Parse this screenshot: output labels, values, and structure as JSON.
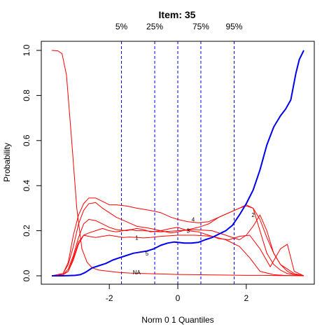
{
  "chart_data": {
    "type": "line",
    "title": "Item:  35",
    "xlabel": "Norm 0 1 Quantiles",
    "ylabel": "Probability",
    "xlim": [
      -3.8,
      3.8
    ],
    "ylim": [
      0,
      1
    ],
    "x_ticks": [
      -2,
      0,
      2
    ],
    "y_ticks": [
      0.0,
      0.2,
      0.4,
      0.6,
      0.8,
      1.0
    ],
    "y_tick_labels": [
      "0.0",
      "0.2",
      "0.4",
      "0.6",
      "0.8",
      "1.0"
    ],
    "grid": false,
    "quantile_lines": [
      {
        "label": "5%",
        "x": -1.645
      },
      {
        "label": "25%",
        "x": -0.674
      },
      {
        "label": "",
        "x": 0.0
      },
      {
        "label": "75%",
        "x": 0.674
      },
      {
        "label": "95%",
        "x": 1.645
      }
    ],
    "series": [
      {
        "name": "NA",
        "color": "#ff0000",
        "label_point": [
          -1.2,
          0.015
        ],
        "x": [
          -3.68,
          -3.5,
          -3.38,
          -3.25,
          -3.1,
          -2.95,
          -2.8,
          -2.65,
          -2.5,
          -2.3,
          -2.0,
          -1.7,
          -1.4,
          -1.0,
          -0.5,
          0.0,
          0.5,
          1.0,
          1.5,
          2.0,
          2.5,
          3.0,
          3.3,
          3.68
        ],
        "y": [
          1.0,
          0.998,
          0.985,
          0.89,
          0.6,
          0.3,
          0.12,
          0.06,
          0.035,
          0.025,
          0.02,
          0.015,
          0.012,
          0.01,
          0.008,
          0.006,
          0.005,
          0.004,
          0.003,
          0.002,
          0.002,
          0.001,
          0.001,
          0.001
        ]
      },
      {
        "name": "1",
        "color": "#ff0000",
        "label_point": [
          -1.2,
          0.17
        ],
        "x": [
          -3.68,
          -3.35,
          -3.2,
          -3.05,
          -2.9,
          -2.75,
          -2.6,
          -2.4,
          -2.2,
          -2.0,
          -1.8,
          -1.6,
          -1.4,
          -1.2,
          -1.0,
          -0.8,
          -0.5,
          0.0,
          0.5,
          1.0,
          1.4,
          1.8,
          2.1,
          2.4,
          2.8,
          3.1,
          3.4,
          3.68
        ],
        "y": [
          0.0,
          0.005,
          0.02,
          0.07,
          0.14,
          0.18,
          0.175,
          0.17,
          0.175,
          0.18,
          0.175,
          0.17,
          0.172,
          0.17,
          0.168,
          0.17,
          0.175,
          0.18,
          0.18,
          0.175,
          0.16,
          0.13,
          0.08,
          0.02,
          0.005,
          0.002,
          0.001,
          0.0
        ]
      },
      {
        "name": "2",
        "color": "#ff0000",
        "label_point": [
          2.2,
          0.27
        ],
        "x": [
          -3.68,
          -3.35,
          -3.2,
          -3.05,
          -2.9,
          -2.75,
          -2.6,
          -2.4,
          -2.2,
          -2.0,
          -1.8,
          -1.6,
          -1.4,
          -1.2,
          -1.0,
          -0.5,
          0.0,
          0.5,
          1.0,
          1.4,
          1.8,
          2.0,
          2.2,
          2.4,
          2.6,
          2.8,
          3.0,
          3.2,
          3.4,
          3.68
        ],
        "y": [
          0.0,
          0.005,
          0.02,
          0.08,
          0.15,
          0.18,
          0.19,
          0.2,
          0.21,
          0.2,
          0.195,
          0.2,
          0.205,
          0.2,
          0.2,
          0.195,
          0.2,
          0.205,
          0.2,
          0.18,
          0.16,
          0.18,
          0.22,
          0.27,
          0.2,
          0.1,
          0.05,
          0.03,
          0.01,
          0.0
        ]
      },
      {
        "name": "3",
        "color": "#ff0000",
        "label_point": [
          0.3,
          0.2
        ],
        "x": [
          -3.68,
          -3.35,
          -3.2,
          -3.05,
          -2.9,
          -2.75,
          -2.6,
          -2.4,
          -2.2,
          -2.0,
          -1.8,
          -1.5,
          -1.2,
          -1.0,
          -0.8,
          -0.5,
          -0.2,
          0.0,
          0.3,
          0.6,
          0.9,
          1.2,
          1.5,
          1.8,
          2.1,
          2.4,
          2.7,
          3.0,
          3.2,
          3.4,
          3.68
        ],
        "y": [
          0.0,
          0.005,
          0.03,
          0.09,
          0.17,
          0.23,
          0.25,
          0.245,
          0.23,
          0.215,
          0.205,
          0.2,
          0.21,
          0.205,
          0.195,
          0.2,
          0.21,
          0.215,
          0.2,
          0.195,
          0.18,
          0.165,
          0.16,
          0.175,
          0.18,
          0.12,
          0.04,
          0.12,
          0.14,
          0.02,
          0.0
        ]
      },
      {
        "name": "4",
        "color": "#ff0000",
        "label_point": [
          0.45,
          0.25
        ],
        "x": [
          -3.68,
          -3.35,
          -3.2,
          -3.05,
          -2.9,
          -2.75,
          -2.6,
          -2.4,
          -2.2,
          -2.0,
          -1.8,
          -1.5,
          -1.2,
          -1.0,
          -0.8,
          -0.5,
          -0.2,
          0.0,
          0.3,
          0.6,
          0.9,
          1.2,
          1.5,
          1.8,
          2.0,
          2.2,
          2.4,
          2.6,
          2.8,
          3.0,
          3.2,
          3.4,
          3.68
        ],
        "y": [
          0.0,
          0.01,
          0.05,
          0.13,
          0.23,
          0.29,
          0.32,
          0.325,
          0.3,
          0.28,
          0.26,
          0.24,
          0.22,
          0.215,
          0.21,
          0.2,
          0.19,
          0.195,
          0.205,
          0.215,
          0.23,
          0.26,
          0.28,
          0.3,
          0.315,
          0.3,
          0.2,
          0.1,
          0.05,
          0.025,
          0.01,
          0.005,
          0.0
        ]
      },
      {
        "name": "5",
        "color": "#ff0000",
        "label_point": [
          -0.9,
          0.1
        ],
        "x": [
          -3.68,
          -3.35,
          -3.2,
          -3.05,
          -2.9,
          -2.75,
          -2.6,
          -2.4,
          -2.2,
          -2.0,
          -1.8,
          -1.5,
          -1.2,
          -1.0,
          -0.8,
          -0.5,
          -0.2,
          0.0,
          0.3,
          0.6,
          0.9,
          1.2,
          1.5,
          1.8,
          2.0,
          2.2,
          2.4,
          2.6,
          2.8,
          3.0,
          3.2,
          3.4,
          3.68
        ],
        "y": [
          0.0,
          0.01,
          0.06,
          0.18,
          0.27,
          0.32,
          0.345,
          0.345,
          0.33,
          0.315,
          0.315,
          0.31,
          0.3,
          0.295,
          0.29,
          0.28,
          0.26,
          0.25,
          0.24,
          0.235,
          0.24,
          0.26,
          0.28,
          0.3,
          0.31,
          0.3,
          0.25,
          0.17,
          0.1,
          0.05,
          0.02,
          0.005,
          0.0
        ]
      },
      {
        "name": "",
        "color": "#0000ee",
        "width": 2,
        "x": [
          -3.68,
          -3.4,
          -3.2,
          -3.0,
          -2.85,
          -2.7,
          -2.5,
          -2.3,
          -2.1,
          -1.9,
          -1.7,
          -1.5,
          -1.3,
          -1.1,
          -0.9,
          -0.7,
          -0.5,
          -0.3,
          -0.1,
          0.0,
          0.2,
          0.4,
          0.6,
          0.8,
          1.0,
          1.2,
          1.4,
          1.6,
          1.8,
          2.0,
          2.2,
          2.4,
          2.6,
          2.8,
          3.0,
          3.15,
          3.3,
          3.45,
          3.55,
          3.68
        ],
        "y": [
          0.0,
          0.0,
          0.001,
          0.002,
          0.005,
          0.015,
          0.035,
          0.045,
          0.055,
          0.07,
          0.08,
          0.09,
          0.1,
          0.105,
          0.11,
          0.12,
          0.135,
          0.145,
          0.15,
          0.148,
          0.145,
          0.145,
          0.148,
          0.16,
          0.17,
          0.185,
          0.2,
          0.225,
          0.27,
          0.32,
          0.38,
          0.47,
          0.58,
          0.66,
          0.71,
          0.74,
          0.78,
          0.9,
          0.96,
          1.0
        ]
      }
    ]
  }
}
